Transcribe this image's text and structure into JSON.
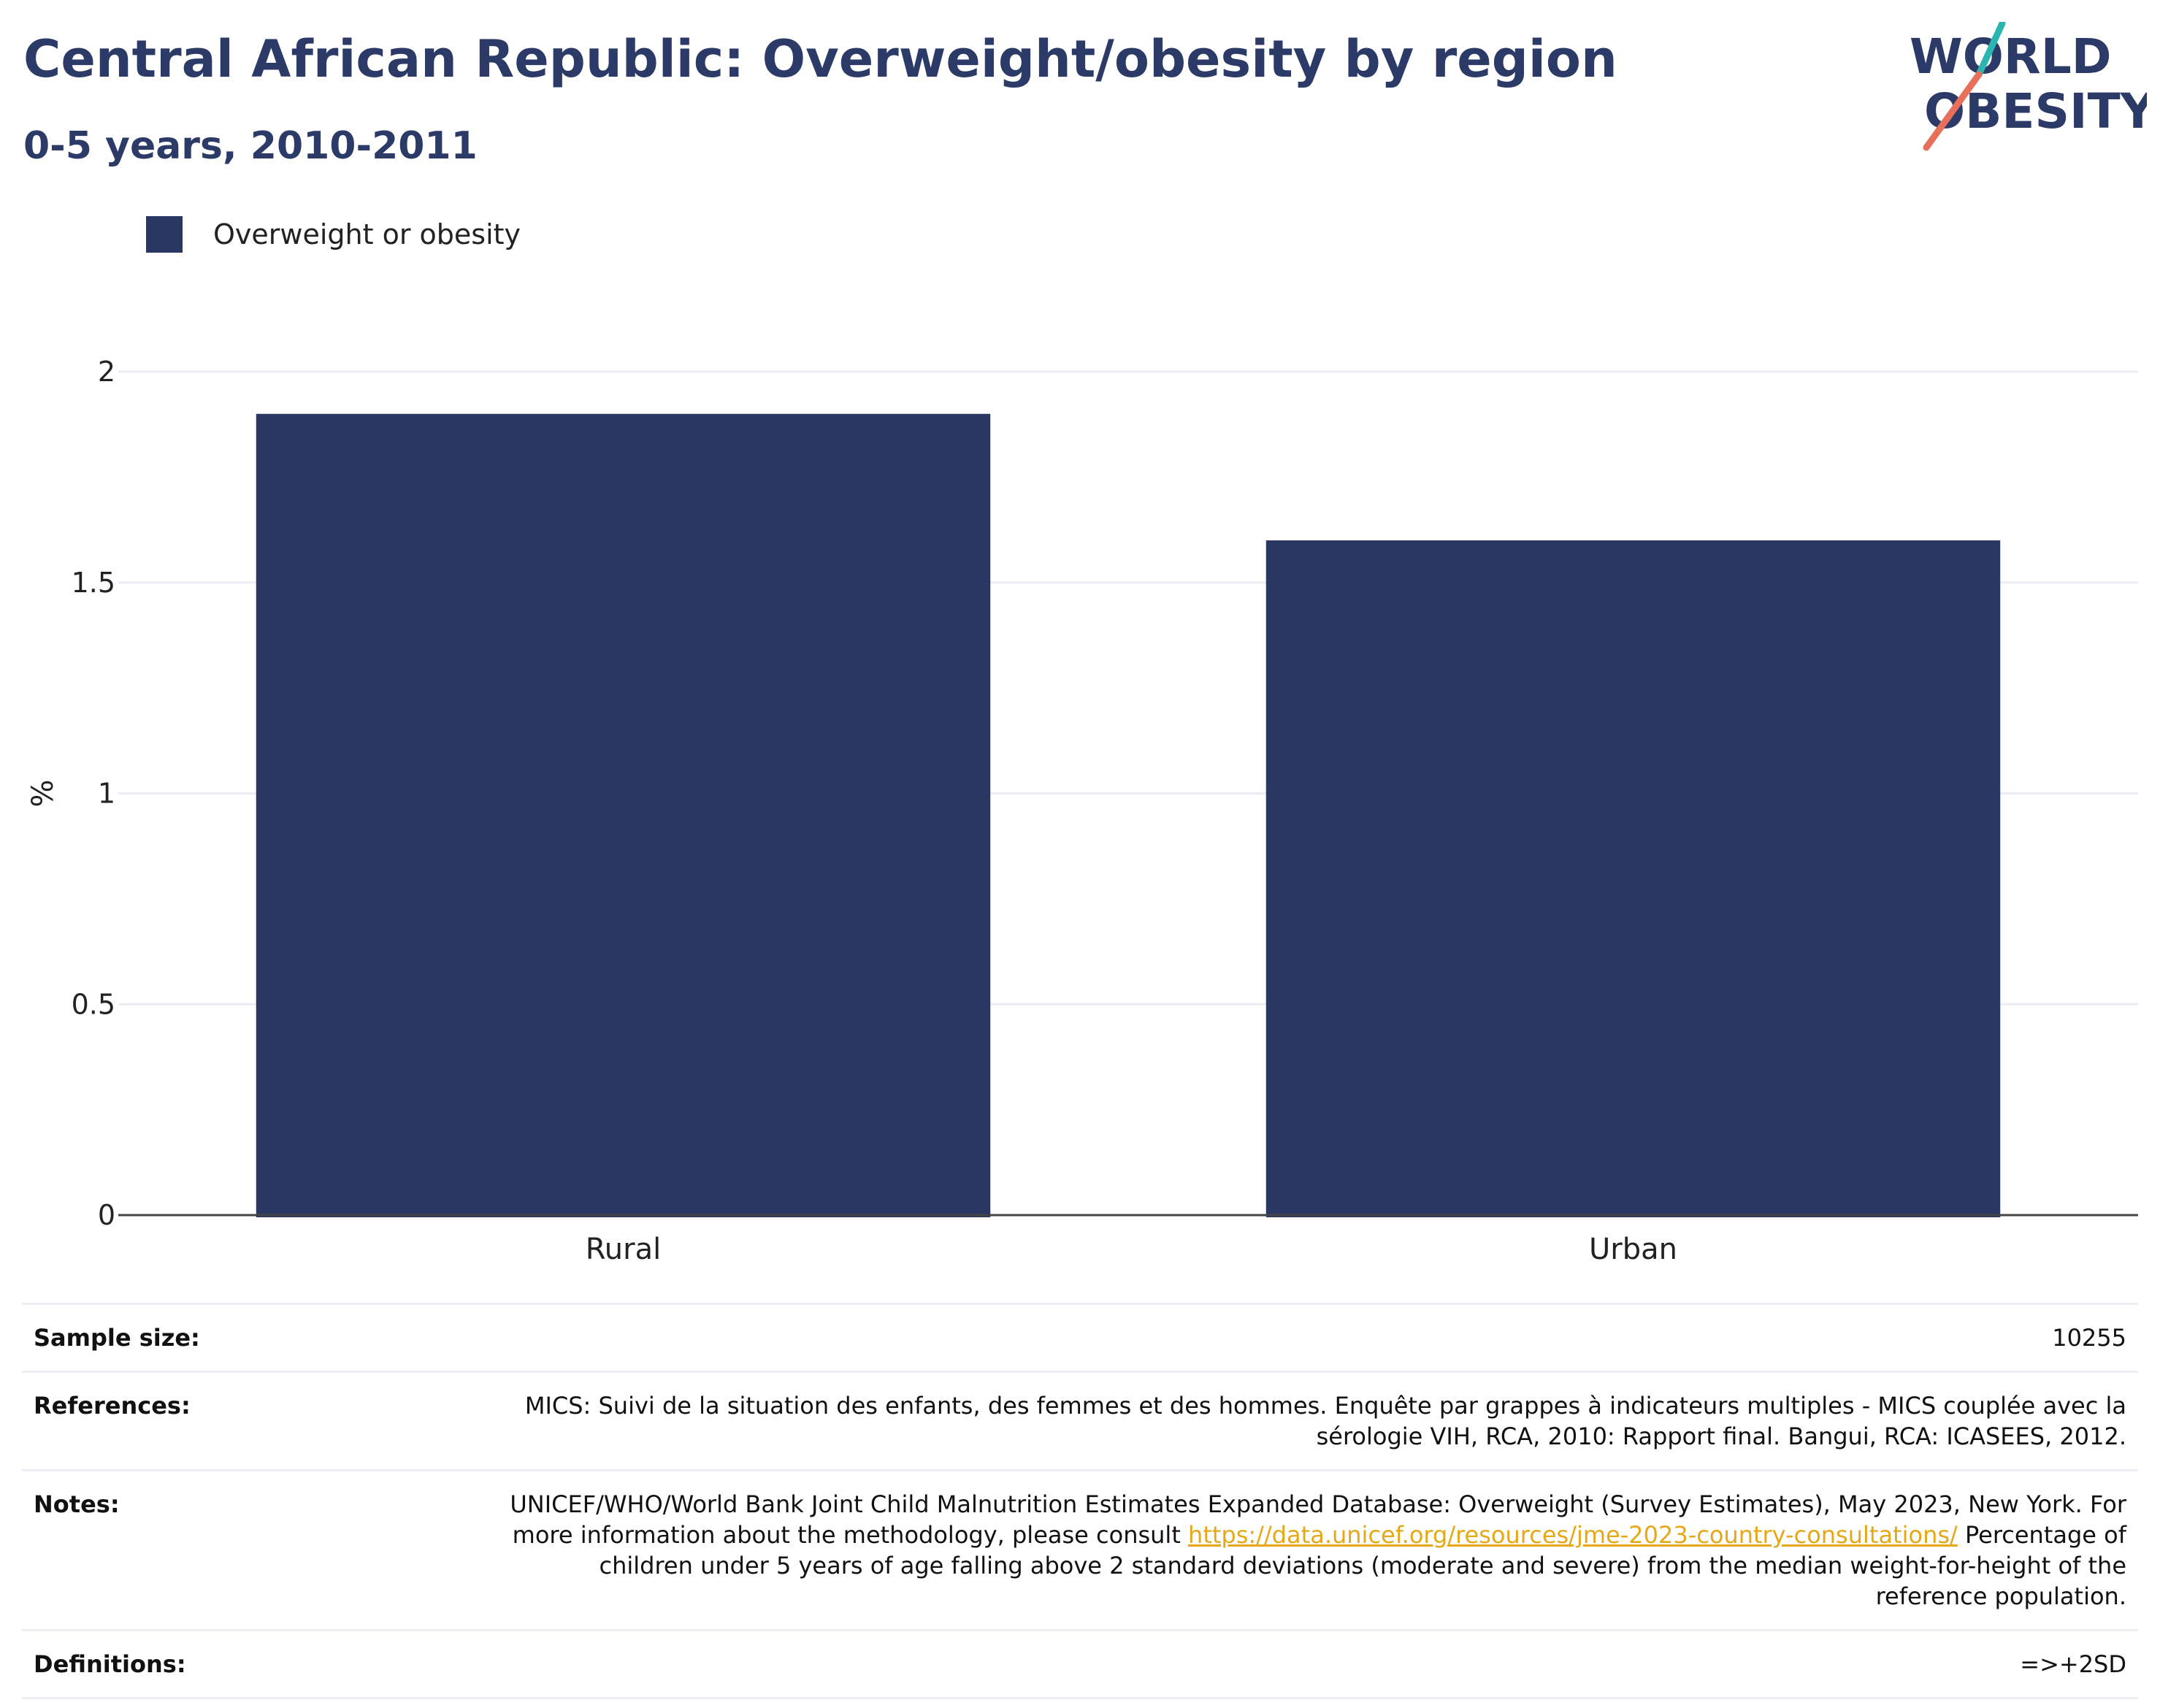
{
  "header": {
    "title": "Central African Republic: Overweight/obesity by region",
    "subtitle": "0-5 years, 2010-2011"
  },
  "logo": {
    "line1": "WORLD",
    "line2": "OBESITY",
    "colors": {
      "text": "#2b3a67",
      "slash_top": "#2bb5b0",
      "slash_bottom": "#e8705a"
    }
  },
  "chart_data": {
    "type": "bar",
    "categories": [
      "Rural",
      "Urban"
    ],
    "series": [
      {
        "name": "Overweight or obesity",
        "values": [
          1.9,
          1.6
        ],
        "color": "#2b3763"
      }
    ],
    "ylabel": "%",
    "ylim": [
      0,
      2
    ],
    "yticks": [
      0,
      0.5,
      1,
      1.5,
      2
    ],
    "ytick_labels": [
      "0",
      "0.5",
      "1",
      "1.5",
      "2"
    ],
    "grid": true,
    "legend_position": "top-left"
  },
  "info": {
    "sample_size_label": "Sample size:",
    "sample_size_value": "10255",
    "references_label": "References:",
    "references_value": "MICS: Suivi de la situation des enfants, des femmes et des hommes. Enquête par grappes à indicateurs multiples - MICS couplée avec la sérologie VIH, RCA, 2010: Rapport final. Bangui, RCA: ICASEES, 2012.",
    "notes_label": "Notes:",
    "notes_text_before": "UNICEF/WHO/World Bank Joint Child Malnutrition Estimates Expanded Database: Overweight (Survey Estimates), May 2023, New York. For more information about the methodology, please consult ",
    "notes_link": "https://data.unicef.org/resources/jme-2023-country-consultations/",
    "notes_text_after": " Percentage of children under 5 years of age falling above 2 standard deviations (moderate and severe) from the median weight-for-height of the reference population.",
    "definitions_label": "Definitions:",
    "definitions_value": "=>+2SD"
  }
}
